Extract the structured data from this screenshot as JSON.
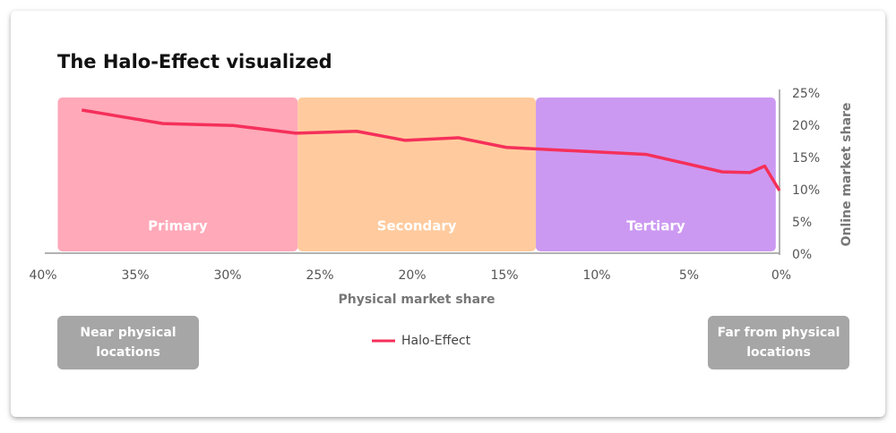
{
  "chart_data": {
    "type": "line",
    "title": "The Halo-Effect visualized",
    "x_label": "Physical market share",
    "y_label": "Online market share",
    "xlim": [
      40,
      0
    ],
    "ylim": [
      0,
      25
    ],
    "xticks": [
      {
        "value": 40,
        "label": "40%"
      },
      {
        "value": 35,
        "label": "35%"
      },
      {
        "value": 30,
        "label": "30%"
      },
      {
        "value": 25,
        "label": "25%"
      },
      {
        "value": 20,
        "label": "20%"
      },
      {
        "value": 15,
        "label": "15%"
      },
      {
        "value": 10,
        "label": "10%"
      },
      {
        "value": 5,
        "label": "5%"
      },
      {
        "value": 0,
        "label": "0%"
      }
    ],
    "yticks": [
      {
        "value": 0,
        "label": "0%"
      },
      {
        "value": 5,
        "label": "5%"
      },
      {
        "value": 10,
        "label": "10%"
      },
      {
        "value": 15,
        "label": "15%"
      },
      {
        "value": 20,
        "label": "20%"
      },
      {
        "value": 25,
        "label": "25%"
      }
    ],
    "zones": [
      {
        "label": "Primary",
        "from": 39.2,
        "to": 26.2,
        "color": "#ffa9b9"
      },
      {
        "label": "Secondary",
        "from": 26.2,
        "to": 13.3,
        "color": "#ffcb9e"
      },
      {
        "label": "Tertiary",
        "from": 13.3,
        "to": 0.3,
        "color": "#cc99f2"
      }
    ],
    "series": [
      {
        "name": "Halo-Effect",
        "color": "#f5305a",
        "x": [
          37.9,
          33.5,
          29.7,
          26.3,
          23.0,
          20.4,
          17.5,
          14.9,
          7.3,
          3.2,
          1.7,
          0.9,
          0.1
        ],
        "values": [
          22.5,
          20.4,
          20.1,
          18.9,
          19.2,
          17.8,
          18.2,
          16.7,
          15.6,
          12.9,
          12.8,
          13.8,
          10.0
        ]
      }
    ],
    "annotations": [
      "Near physical locations",
      "Far from physical locations"
    ]
  }
}
